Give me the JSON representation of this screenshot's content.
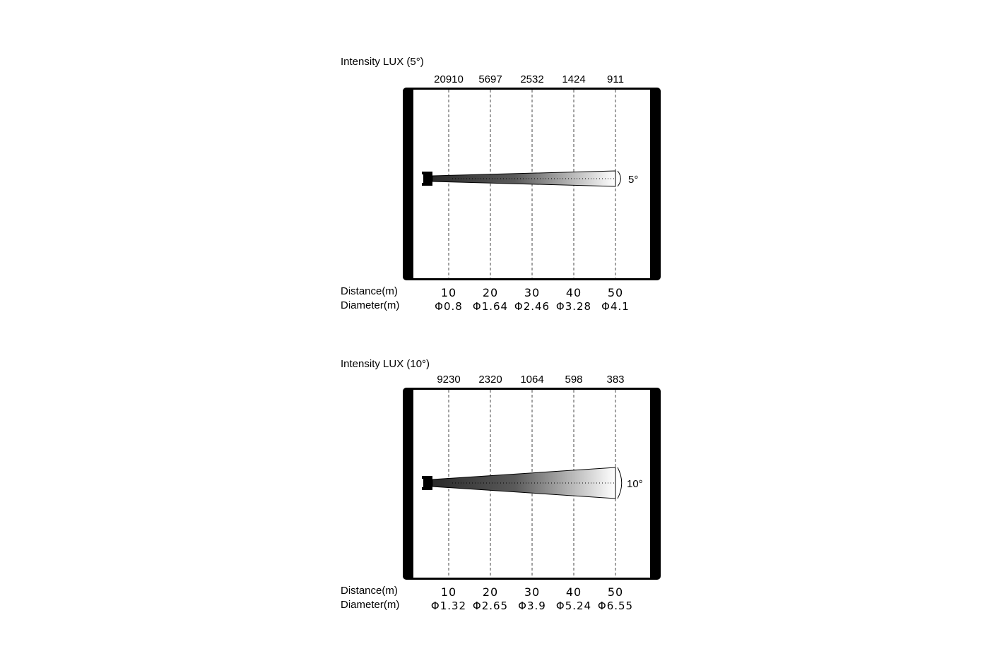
{
  "labels": {
    "distance": "Distance(m)",
    "diameter": "Diameter(m)"
  },
  "panels": [
    {
      "title": "Intensity LUX (5°)",
      "beam_angle_deg": 5,
      "angle_label": "5°",
      "lux": [
        "20910",
        "5697",
        "2532",
        "1424",
        "911"
      ],
      "distance": [
        "10",
        "20",
        "30",
        "40",
        "50"
      ],
      "diameter": [
        "Φ0.8",
        "Φ1.64",
        "Φ2.46",
        "Φ3.28",
        "Φ4.1"
      ]
    },
    {
      "title": "Intensity LUX (10°)",
      "beam_angle_deg": 10,
      "angle_label": "10°",
      "lux": [
        "9230",
        "2320",
        "1064",
        "598",
        "383"
      ],
      "distance": [
        "10",
        "20",
        "30",
        "40",
        "50"
      ],
      "diameter": [
        "Φ1.32",
        "Φ2.65",
        "Φ3.9",
        "Φ5.24",
        "Φ6.55"
      ]
    }
  ]
}
